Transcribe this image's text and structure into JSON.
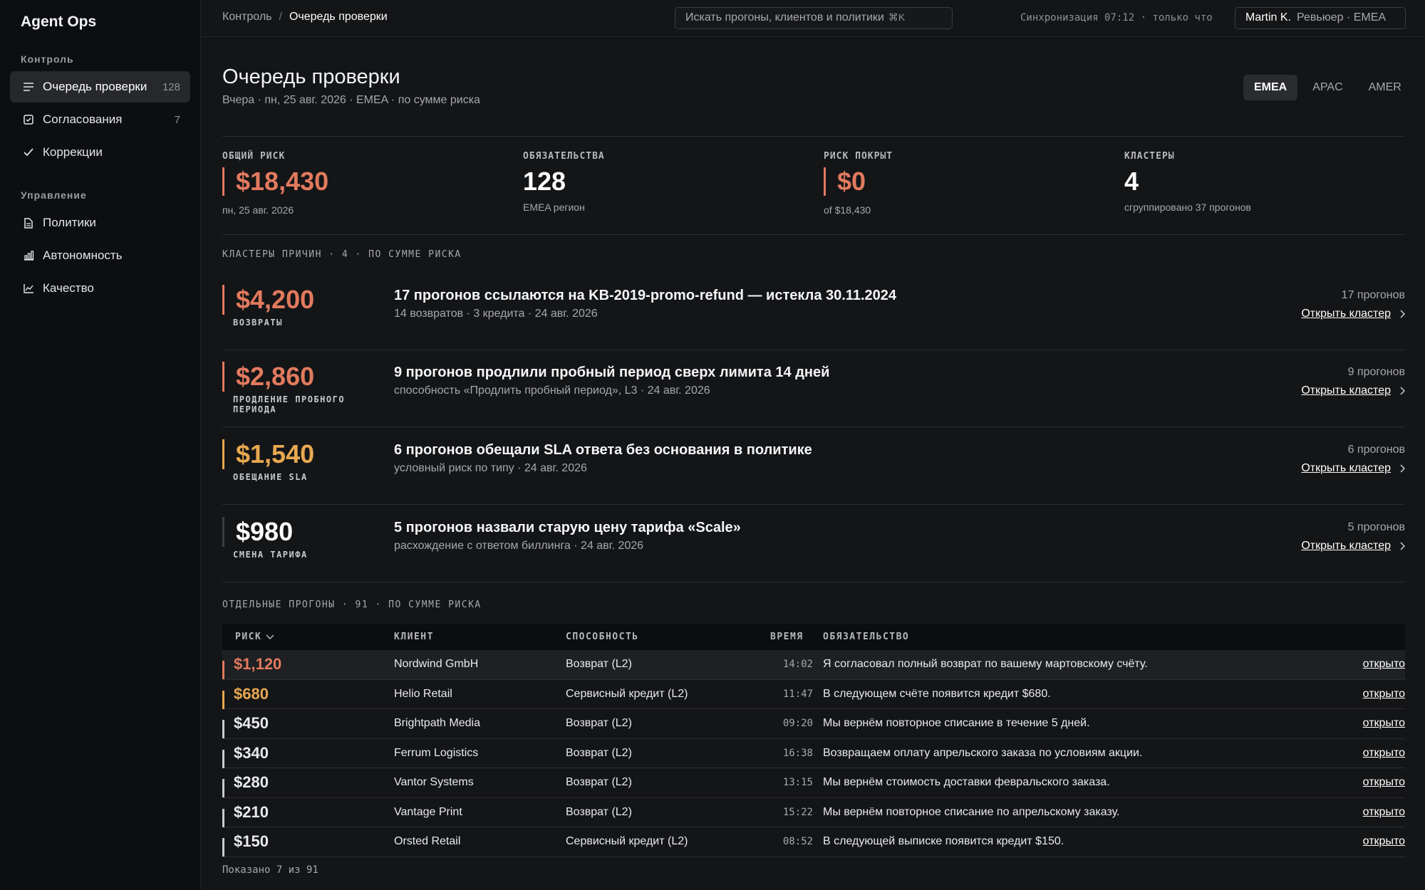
{
  "app": {
    "brand": "Agent Ops"
  },
  "sidebar": {
    "section_control": "Контроль",
    "section_manage": "Управление",
    "items": [
      {
        "label": "Очередь проверки",
        "count": "128",
        "icon": "list-icon"
      },
      {
        "label": "Согласования",
        "count": "7",
        "icon": "checkbox-icon"
      },
      {
        "label": "Коррекции",
        "count": "",
        "icon": "check-icon"
      },
      {
        "label": "Политики",
        "count": "",
        "icon": "document-icon"
      },
      {
        "label": "Автономность",
        "count": "",
        "icon": "bar-chart-icon"
      },
      {
        "label": "Качество",
        "count": "",
        "icon": "line-chart-icon"
      }
    ]
  },
  "topbar": {
    "breadcrumb_root": "Контроль",
    "breadcrumb_sep": "/",
    "breadcrumb_current": "Очередь проверки",
    "search_placeholder": "Искать прогоны, клиентов и политики",
    "search_shortcut": "⌘K",
    "sync": "Синхронизация 07:12 · только что",
    "user_name": "Martin K.",
    "user_role": "Ревьюер · EMEA"
  },
  "header": {
    "title": "Очередь проверки",
    "subtitle": "Вчера · пн, 25 авг. 2026 · EMEA · по сумме риска",
    "regions": [
      "EMEA",
      "APAC",
      "AMER"
    ],
    "active_region": "EMEA"
  },
  "stats": [
    {
      "label": "ОБЩИЙ РИСК",
      "value": "$18,430",
      "note": "пн, 25 авг. 2026",
      "color": "#e27a5e"
    },
    {
      "label": "ОБЯЗАТЕЛЬСТВА",
      "value": "128",
      "note": "EMEA регион",
      "color": "#ffffff"
    },
    {
      "label": "РИСК ПОКРЫТ",
      "value": "$0",
      "note": "of $18,430",
      "color": "#e27a5e"
    },
    {
      "label": "КЛАСТЕРЫ",
      "value": "4",
      "note": "сгруппировано 37 прогонов",
      "color": "#ffffff"
    }
  ],
  "clusters_label": "КЛАСТЕРЫ ПРИЧИН · 4 · ПО СУММЕ РИСКА",
  "clusters": [
    {
      "amount": "$4,200",
      "category": "ВОЗВРАТЫ",
      "title": "17 прогонов ссылаются на KB-2019-promo-refund — истекла 30.11.2024",
      "meta": "14 возвратов · 3 кредита · 24 авг. 2026",
      "count": "17 прогонов",
      "action": "Открыть кластер",
      "color": "#e27a5e",
      "bar_color": "#e27a5e"
    },
    {
      "amount": "$2,860",
      "category": "ПРОДЛЕНИЕ ПРОБНОГО ПЕРИОДА",
      "title": "9 прогонов продлили пробный период сверх лимита 14 дней",
      "meta": "способность «Продлить пробный период», L3 · 24 авг. 2026",
      "count": "9 прогонов",
      "action": "Открыть кластер",
      "color": "#e27a5e",
      "bar_color": "#e27a5e"
    },
    {
      "amount": "$1,540",
      "category": "ОБЕЩАНИЕ SLA",
      "title": "6 прогонов обещали SLA ответа без основания в политике",
      "meta": "условный риск по типу · 24 авг. 2026",
      "count": "6 прогонов",
      "action": "Открыть кластер",
      "color": "#e8a850",
      "bar_color": "#e8a850"
    },
    {
      "amount": "$980",
      "category": "СМЕНА ТАРИФА",
      "title": "5 прогонов назвали старую цену тарифа «Scale»",
      "meta": "расхождение с ответом биллинга · 24 авг. 2026",
      "count": "5 прогонов",
      "action": "Открыть кластер",
      "color": "#ffffff",
      "bar_color": "#3a3c41"
    }
  ],
  "runs_label": "ОТДЕЛЬНЫЕ ПРОГОНЫ · 91 · ПО СУММЕ РИСКА",
  "table": {
    "headers": {
      "risk": "РИСК",
      "client": "КЛИЕНТ",
      "capability": "СПОСОБНОСТЬ",
      "time": "ВРЕМЯ",
      "obligation": "ОБЯЗАТЕЛЬСТВО"
    },
    "rows": [
      {
        "risk": "$1,120",
        "client": "Nordwind GmbH",
        "capability": "Возврат (L2)",
        "time": "14:02",
        "obligation": "Я согласовал полный возврат по вашему мартовскому счёту.",
        "action": "открыто",
        "color": "#e27a5e",
        "bar_color": "#e27a5e"
      },
      {
        "risk": "$680",
        "client": "Helio Retail",
        "capability": "Сервисный кредит (L2)",
        "time": "11:47",
        "obligation": "В следующем счёте появится кредит $680.",
        "action": "открыто",
        "color": "#e8a850",
        "bar_color": "#e8a850"
      },
      {
        "risk": "$450",
        "client": "Brightpath Media",
        "capability": "Возврат (L2)",
        "time": "09:20",
        "obligation": "Мы вернём повторное списание в течение 5 дней.",
        "action": "открыто",
        "color": "#ffffff",
        "bar_color": "#c8cacf"
      },
      {
        "risk": "$340",
        "client": "Ferrum Logistics",
        "capability": "Возврат (L2)",
        "time": "16:38",
        "obligation": "Возвращаем оплату апрельского заказа по условиям акции.",
        "action": "открыто",
        "color": "#ffffff",
        "bar_color": "#c8cacf"
      },
      {
        "risk": "$280",
        "client": "Vantor Systems",
        "capability": "Возврат (L2)",
        "time": "13:15",
        "obligation": "Мы вернём стоимость доставки февральского заказа.",
        "action": "открыто",
        "color": "#ffffff",
        "bar_color": "#c8cacf"
      },
      {
        "risk": "$210",
        "client": "Vantage Print",
        "capability": "Возврат (L2)",
        "time": "15:22",
        "obligation": "Мы вернём повторное списание по апрельскому заказу.",
        "action": "открыто",
        "color": "#ffffff",
        "bar_color": "#c8cacf"
      },
      {
        "risk": "$150",
        "client": "Orsted Retail",
        "capability": "Сервисный кредит (L2)",
        "time": "08:52",
        "obligation": "В следующей выписке появится кредит $150.",
        "action": "открыто",
        "color": "#ffffff",
        "bar_color": "#c8cacf"
      }
    ],
    "footer": "Показано 7 из 91"
  }
}
